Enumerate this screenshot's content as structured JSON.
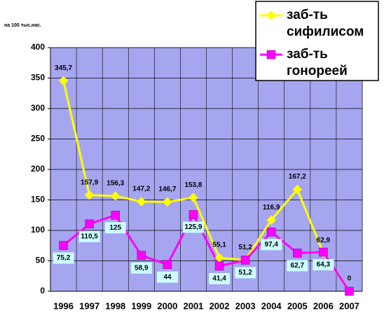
{
  "chart_data": {
    "type": "line",
    "y_label": "на 100 тыс.нас.",
    "categories": [
      "1996",
      "1997",
      "1998",
      "1999",
      "2000",
      "2001",
      "2002",
      "2003",
      "2004",
      "2005",
      "2006",
      "2007"
    ],
    "series": [
      {
        "name": "заб-ть сифилисом",
        "color": "#ffff00",
        "marker": "diamond",
        "values": [
          345.7,
          157.9,
          156.3,
          147.2,
          146.7,
          153.8,
          55.1,
          51.2,
          116.9,
          167.2,
          62.9,
          0
        ],
        "value_labels": [
          "345,7",
          "157,9",
          "156,3",
          "147,2",
          "146,7",
          "153,8",
          "55,1",
          "51,2",
          "116,9",
          "167,2",
          "62,9",
          "0"
        ]
      },
      {
        "name": "заб-ть гонореей",
        "color": "#ff00ff",
        "marker": "square",
        "values": [
          75.2,
          110.5,
          125,
          58.9,
          44,
          125.9,
          41.4,
          51.2,
          97.4,
          62.7,
          64.3,
          0
        ],
        "value_labels": [
          "75,2",
          "110,5",
          "125",
          "58,9",
          "44",
          "125,9",
          "41,4",
          "51,2",
          "97,4",
          "62,7",
          "64,3",
          null
        ]
      }
    ],
    "ylim": [
      0,
      400
    ],
    "yticks": [
      0,
      50,
      100,
      150,
      200,
      250,
      300,
      350,
      400
    ],
    "grid": true,
    "legend": "top-right"
  }
}
